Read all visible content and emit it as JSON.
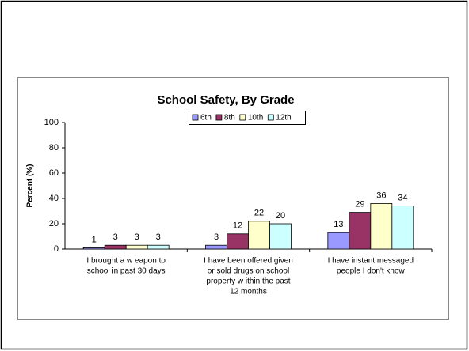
{
  "chart_data": {
    "type": "bar",
    "title": "School Safety, By Grade",
    "y_label": "Percent (%)",
    "categories": [
      [
        "I brought a w eapon to",
        "school in past 30 days"
      ],
      [
        "I have been offered,given",
        "or sold drugs on school",
        "property w ithin the past",
        "12 months"
      ],
      [
        "I have instant messaged",
        "people I don't know"
      ]
    ],
    "series": [
      {
        "name": "6th",
        "color": "#9999ff",
        "values": [
          1,
          3,
          13
        ]
      },
      {
        "name": "8th",
        "color": "#993366",
        "values": [
          3,
          12,
          29
        ]
      },
      {
        "name": "10th",
        "color": "#ffffcc",
        "values": [
          3,
          22,
          36
        ]
      },
      {
        "name": "12th",
        "color": "#ccffff",
        "values": [
          3,
          20,
          34
        ]
      }
    ],
    "ylim": [
      0,
      100
    ],
    "yticks": [
      0,
      20,
      40,
      60,
      80,
      100
    ],
    "legend": "top"
  }
}
